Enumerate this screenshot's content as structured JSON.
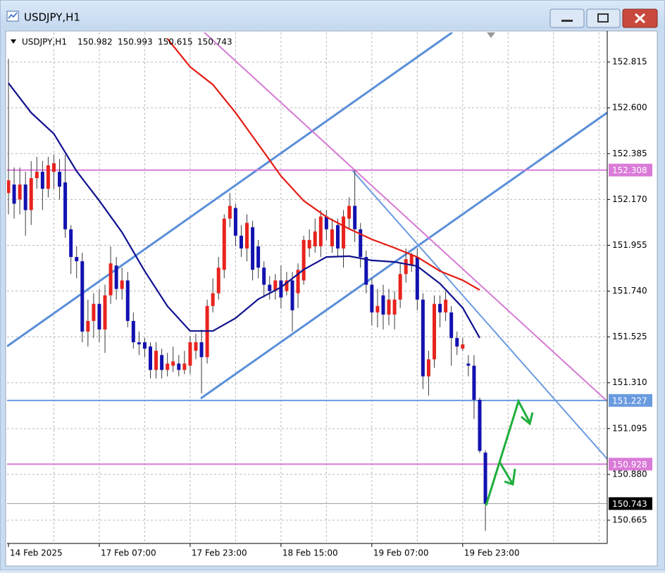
{
  "chart_data": {
    "type": "candlestick",
    "window_title": "USDJPY,H1",
    "symbol": "USDJPY,H1",
    "categories": [
      "14 Feb 2025",
      null,
      null,
      null,
      null,
      null,
      null,
      null,
      null,
      null,
      null,
      null,
      null,
      null,
      null,
      null,
      "17 Feb 07:00",
      null,
      null,
      null,
      null,
      null,
      null,
      null,
      null,
      null,
      null,
      null,
      null,
      null,
      null,
      null,
      "17 Feb 23:00",
      null,
      null,
      null,
      null,
      null,
      null,
      null,
      null,
      null,
      null,
      null,
      null,
      null,
      null,
      null,
      "18 Feb 15:00",
      null,
      null,
      null,
      null,
      null,
      null,
      null,
      null,
      null,
      null,
      null,
      null,
      null,
      null,
      null,
      "19 Feb 07:00",
      null,
      null,
      null,
      null,
      null,
      null,
      null,
      null,
      null,
      null,
      null,
      null,
      null,
      null,
      null,
      "19 Feb 23:00",
      null,
      null,
      null,
      null
    ],
    "open": [
      152.2,
      152.24,
      152.17,
      152.24,
      152.12,
      152.27,
      152.3,
      152.22,
      152.3,
      152.3,
      152.25,
      152.03,
      151.9,
      151.88,
      151.55,
      151.6,
      151.68,
      151.56,
      151.72,
      151.86,
      151.75,
      151.79,
      151.6,
      151.5,
      151.5,
      151.48,
      151.37,
      151.44,
      151.37,
      151.39,
      151.4,
      151.37,
      151.39,
      151.46,
      151.5,
      151.43,
      151.67,
      151.73,
      151.84,
      152.08,
      152.13,
      152.0,
      151.94,
      152.04,
      151.95,
      151.85,
      151.77,
      151.74,
      151.79,
      151.74,
      151.79,
      151.73,
      151.79,
      151.94,
      151.95,
      151.95,
      152.09,
      151.95,
      152.05,
      151.94,
      152.08,
      152.14,
      152.03,
      151.9,
      151.77,
      151.64,
      151.72,
      151.63,
      151.63,
      151.7,
      151.82,
      151.86,
      151.9,
      151.7,
      151.34,
      151.42,
      151.68,
      151.64,
      151.64,
      151.52,
      151.47,
      151.4,
      151.39,
      151.23,
      150.982
    ],
    "high": [
      152.83,
      152.32,
      152.32,
      152.3,
      152.35,
      152.37,
      152.35,
      152.37,
      152.38,
      152.36,
      152.38,
      152.05,
      151.95,
      151.92,
      151.7,
      151.73,
      151.75,
      151.77,
      151.95,
      151.9,
      151.85,
      151.83,
      151.64,
      151.55,
      151.52,
      151.5,
      151.5,
      151.47,
      151.45,
      151.48,
      151.44,
      151.46,
      151.53,
      151.54,
      151.56,
      151.7,
      151.8,
      151.9,
      152.1,
      152.2,
      152.15,
      152.05,
      152.1,
      152.07,
      151.98,
      151.88,
      151.81,
      151.82,
      151.86,
      151.83,
      151.83,
      151.87,
      152.0,
      152.03,
      152.08,
      152.12,
      152.12,
      152.08,
      152.08,
      152.12,
      152.18,
      152.31,
      152.06,
      151.93,
      151.8,
      151.75,
      151.77,
      151.75,
      151.74,
      151.87,
      151.94,
      151.92,
      151.94,
      151.73,
      151.46,
      151.72,
      151.72,
      151.74,
      151.67,
      151.55,
      151.52,
      151.44,
      151.44,
      151.24,
      150.993
    ],
    "low": [
      152.1,
      152.08,
      152.1,
      152.0,
      152.05,
      152.22,
      152.12,
      152.18,
      152.22,
      152.17,
      151.99,
      151.82,
      151.8,
      151.5,
      151.48,
      151.52,
      151.5,
      151.45,
      151.68,
      151.7,
      151.7,
      151.57,
      151.47,
      151.44,
      151.43,
      151.33,
      151.33,
      151.33,
      151.34,
      151.36,
      151.34,
      151.35,
      151.35,
      151.42,
      151.26,
      151.4,
      151.64,
      151.7,
      151.8,
      152.04,
      151.95,
      151.9,
      151.88,
      151.79,
      151.8,
      151.71,
      151.7,
      151.7,
      151.66,
      151.72,
      151.55,
      151.66,
      151.77,
      151.9,
      151.92,
      151.9,
      151.98,
      151.92,
      151.9,
      151.85,
      152.03,
      151.97,
      151.85,
      151.73,
      151.58,
      151.57,
      151.56,
      151.58,
      151.56,
      151.66,
      151.78,
      151.83,
      151.65,
      151.28,
      151.25,
      151.38,
      151.57,
      151.6,
      151.39,
      151.44,
      151.46,
      151.34,
      151.14,
      150.98,
      150.615
    ],
    "close": [
      152.26,
      152.15,
      152.24,
      152.12,
      152.27,
      152.3,
      152.22,
      152.33,
      152.34,
      152.23,
      152.03,
      151.9,
      151.88,
      151.55,
      151.6,
      151.68,
      151.56,
      151.72,
      151.87,
      151.75,
      151.79,
      151.6,
      151.5,
      151.49,
      151.47,
      151.37,
      151.46,
      151.37,
      151.4,
      151.41,
      151.37,
      151.4,
      151.5,
      151.5,
      151.43,
      151.67,
      151.73,
      151.85,
      152.08,
      152.14,
      152.0,
      151.94,
      152.06,
      151.84,
      151.85,
      151.77,
      151.74,
      151.79,
      151.71,
      151.79,
      151.65,
      151.84,
      151.98,
      151.98,
      152.02,
      152.09,
      152.03,
      152.03,
      151.94,
      152.09,
      152.14,
      152.03,
      151.9,
      151.77,
      151.64,
      151.67,
      151.63,
      151.7,
      151.7,
      151.82,
      151.89,
      151.91,
      151.7,
      151.34,
      151.42,
      151.68,
      151.64,
      151.7,
      151.52,
      151.48,
      151.49,
      151.39,
      151.23,
      150.99,
      150.743
    ],
    "up_color": "#e8231d",
    "down_color": "#1212b0",
    "wick_color": "#3a3a3a",
    "indicators": [
      {
        "color": "#10108f",
        "x": [
          0,
          4,
          8,
          12,
          16,
          20,
          24,
          28,
          32,
          36,
          40,
          44,
          48,
          52,
          56,
          60,
          64,
          68,
          72,
          76,
          80,
          83
        ],
        "values": [
          152.716,
          152.577,
          152.478,
          152.303,
          152.164,
          152.016,
          151.834,
          151.669,
          151.553,
          151.553,
          151.613,
          151.702,
          151.758,
          151.841,
          151.9,
          151.904,
          151.884,
          151.877,
          151.857,
          151.775,
          151.662,
          151.52
        ]
      },
      {
        "color": "#e41b12",
        "x": [
          28,
          32,
          36,
          40,
          44,
          48,
          52,
          56,
          60,
          64,
          68,
          72,
          76,
          80,
          83
        ],
        "values": [
          152.924,
          152.792,
          152.709,
          152.577,
          152.429,
          152.28,
          152.164,
          152.088,
          152.032,
          151.983,
          151.943,
          151.9,
          151.834,
          151.791,
          151.745
        ]
      }
    ],
    "hlines": [
      {
        "value": 152.308,
        "color": "#da7ad8"
      },
      {
        "value": 151.227,
        "color": "#6a9be0"
      },
      {
        "value": 150.928,
        "color": "#da7ad8"
      }
    ],
    "ylim": [
      150.556,
      152.954
    ],
    "yticks": [
      150.665,
      {
        "value": 150.88,
        "label": "150.880"
      },
      151.095,
      {
        "value": 151.31,
        "label": "151.310"
      },
      151.525,
      {
        "value": 151.74,
        "label": "151.740"
      },
      151.955,
      {
        "value": 152.17,
        "label": "152.170"
      },
      152.385,
      {
        "value": 152.6,
        "label": "152.600"
      },
      152.815
    ],
    "grid": true
  }
}
